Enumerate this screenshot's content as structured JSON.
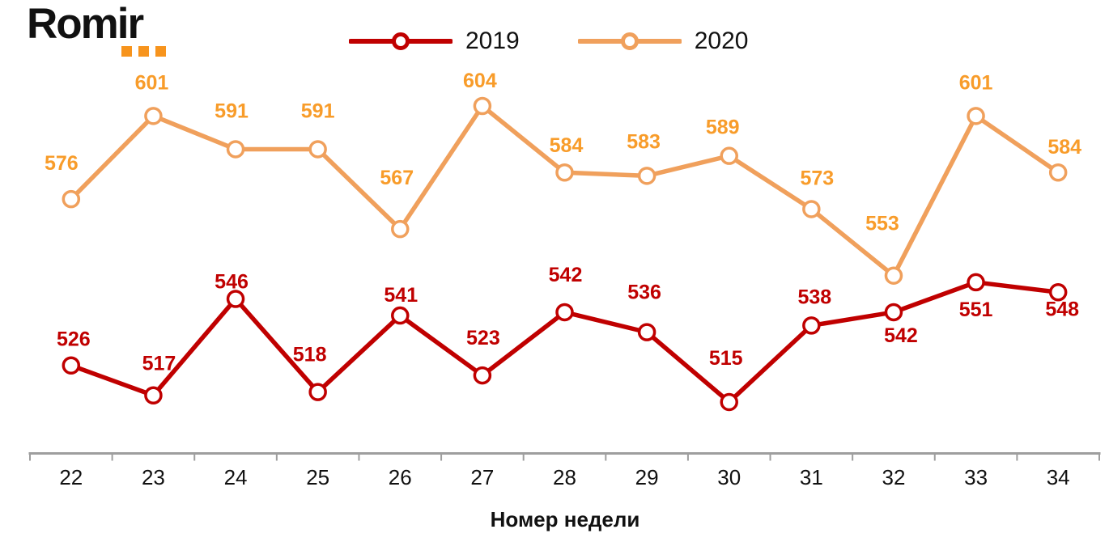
{
  "logo": {
    "text": "Romir",
    "dot_color": "#F7941D"
  },
  "axis": {
    "line_color": "#9E9E9E",
    "tick_label_color": "#111111"
  },
  "chart_data": {
    "type": "line",
    "title": "",
    "xlabel": "Номер недели",
    "ylabel": "",
    "x": [
      22,
      23,
      24,
      25,
      26,
      27,
      28,
      29,
      30,
      31,
      32,
      33,
      34
    ],
    "ylim": [
      505,
      615
    ],
    "grid": false,
    "legend_position": "top-center",
    "series": [
      {
        "name": "2019",
        "color": "#C00000",
        "label_color": "#C00000",
        "values": [
          526,
          517,
          546,
          518,
          541,
          523,
          542,
          536,
          515,
          538,
          542,
          551,
          548
        ],
        "label_offsets": [
          [
            3,
            -24
          ],
          [
            7,
            -31
          ],
          [
            -5,
            -13
          ],
          [
            -10,
            -38
          ],
          [
            1,
            -17
          ],
          [
            1,
            -38
          ],
          [
            1,
            -38
          ],
          [
            -3,
            -41
          ],
          [
            -4,
            -46
          ],
          [
            4,
            -27
          ],
          [
            9,
            37
          ],
          [
            0,
            42
          ],
          [
            5,
            29
          ]
        ]
      },
      {
        "name": "2020",
        "color": "#F0A05C",
        "label_color": "#F89C2A",
        "values": [
          576,
          601,
          591,
          591,
          567,
          604,
          584,
          583,
          589,
          573,
          553,
          601,
          584
        ],
        "label_offsets": [
          [
            -12,
            -36
          ],
          [
            -2,
            -33
          ],
          [
            -5,
            -39
          ],
          [
            0,
            -39
          ],
          [
            -4,
            -55
          ],
          [
            -3,
            -23
          ],
          [
            2,
            -25
          ],
          [
            -4,
            -34
          ],
          [
            -8,
            -27
          ],
          [
            7,
            -30
          ],
          [
            -14,
            -56
          ],
          [
            0,
            -33
          ],
          [
            8,
            -23
          ]
        ]
      }
    ]
  }
}
